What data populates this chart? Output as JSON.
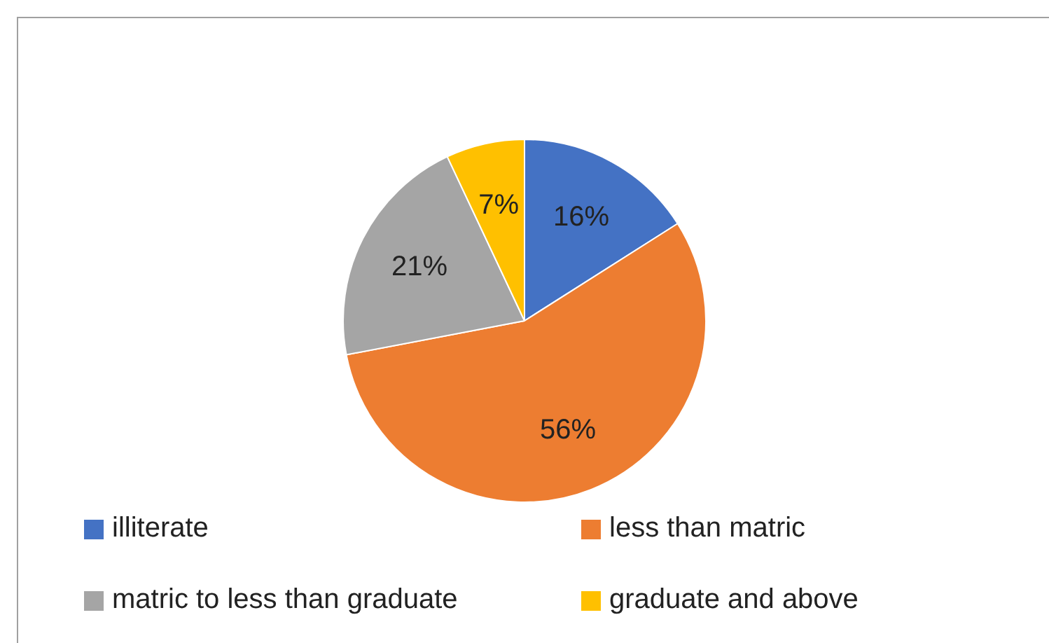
{
  "chart_data": {
    "type": "pie",
    "categories": [
      "illiterate",
      "less than matric",
      "matric to less than graduate",
      "graduate and above"
    ],
    "values": [
      16,
      56,
      21,
      7
    ],
    "colors": [
      "#4472c4",
      "#ed7d31",
      "#a5a5a5",
      "#ffc000"
    ],
    "value_labels": [
      "16%",
      "56%",
      "21%",
      "7%"
    ],
    "legend": "bottom"
  }
}
